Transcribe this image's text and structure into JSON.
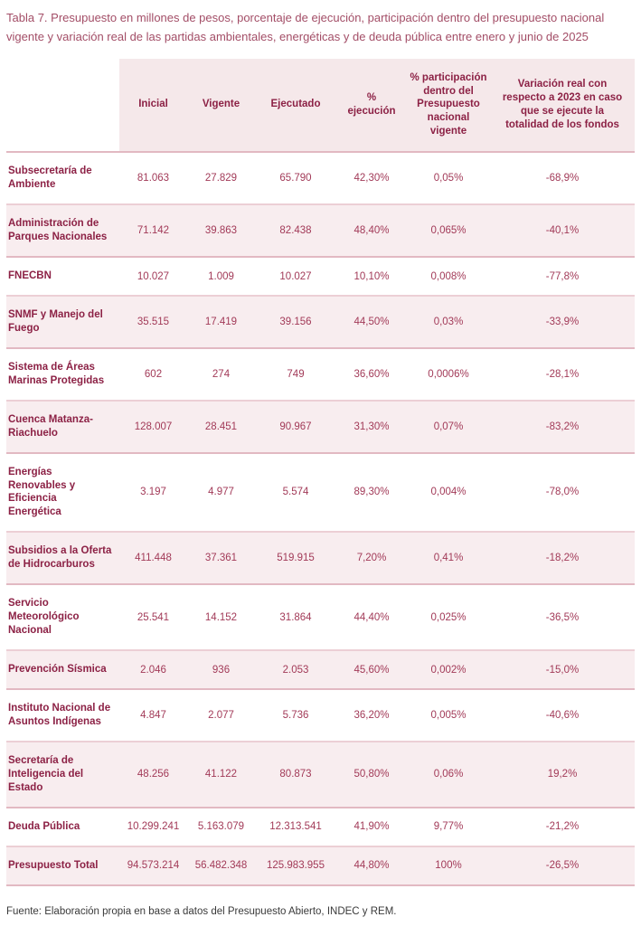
{
  "title": "Tabla 7. Presupuesto en millones de pesos, porcentaje de ejecución, participación dentro del presupuesto nacional vigente y variación real de las partidas ambientales, energéticas y de deuda pública entre enero y junio de 2025",
  "source_note": "Fuente: Elaboración propia en base a datos del Presupuesto Abierto, INDEC y REM.",
  "colors": {
    "title_text": "#a34e67",
    "label_text": "#8c2145",
    "value_text": "#a23a58",
    "header_bg": "#f5e8ea",
    "row_alt_bg": "#f8edef",
    "divider": "#eccfd5",
    "divider_strong": "#e2b9c2",
    "source_text": "#3a3a3a"
  },
  "chart_data": {
    "type": "table",
    "columns": [
      "",
      "Inicial",
      "Vigente",
      "Ejecutado",
      "% ejecución",
      "% participación dentro del Presupuesto nacional vigente",
      "Variación real con respecto a 2023 en caso que se ejecute la totalidad de los fondos"
    ],
    "rows": [
      {
        "label": "Subsecretaría de Ambiente",
        "inicial": "81.063",
        "vigente": "27.829",
        "ejecutado": "65.790",
        "ejecucion": "42,30%",
        "participacion": "0,05%",
        "variacion": "-68,9%"
      },
      {
        "label": "Administración de Parques Nacionales",
        "inicial": "71.142",
        "vigente": "39.863",
        "ejecutado": "82.438",
        "ejecucion": "48,40%",
        "participacion": "0,065%",
        "variacion": "-40,1%"
      },
      {
        "label": "FNECBN",
        "inicial": "10.027",
        "vigente": "1.009",
        "ejecutado": "10.027",
        "ejecucion": "10,10%",
        "participacion": "0,008%",
        "variacion": "-77,8%"
      },
      {
        "label": "SNMF y Manejo del Fuego",
        "inicial": "35.515",
        "vigente": "17.419",
        "ejecutado": "39.156",
        "ejecucion": "44,50%",
        "participacion": "0,03%",
        "variacion": "-33,9%"
      },
      {
        "label": "Sistema de Áreas Marinas Protegidas",
        "inicial": "602",
        "vigente": "274",
        "ejecutado": "749",
        "ejecucion": "36,60%",
        "participacion": "0,0006%",
        "variacion": "-28,1%"
      },
      {
        "label": "Cuenca Matanza-Riachuelo",
        "inicial": "128.007",
        "vigente": "28.451",
        "ejecutado": "90.967",
        "ejecucion": "31,30%",
        "participacion": "0,07%",
        "variacion": "-83,2%"
      },
      {
        "label": "Energías Renovables y Eficiencia Energética",
        "inicial": "3.197",
        "vigente": "4.977",
        "ejecutado": "5.574",
        "ejecucion": "89,30%",
        "participacion": "0,004%",
        "variacion": "-78,0%"
      },
      {
        "label": "Subsidios a la Oferta de Hidrocarburos",
        "inicial": "411.448",
        "vigente": "37.361",
        "ejecutado": "519.915",
        "ejecucion": "7,20%",
        "participacion": "0,41%",
        "variacion": "-18,2%"
      },
      {
        "label": "Servicio Meteorológico Nacional",
        "inicial": "25.541",
        "vigente": "14.152",
        "ejecutado": "31.864",
        "ejecucion": "44,40%",
        "participacion": "0,025%",
        "variacion": "-36,5%"
      },
      {
        "label": "Prevención Sísmica",
        "inicial": "2.046",
        "vigente": "936",
        "ejecutado": "2.053",
        "ejecucion": "45,60%",
        "participacion": "0,002%",
        "variacion": "-15,0%"
      },
      {
        "label": "Instituto Nacional de Asuntos Indígenas",
        "inicial": "4.847",
        "vigente": "2.077",
        "ejecutado": "5.736",
        "ejecucion": "36,20%",
        "participacion": "0,005%",
        "variacion": "-40,6%"
      },
      {
        "label": "Secretaría de Inteligencia del Estado",
        "inicial": "48.256",
        "vigente": "41.122",
        "ejecutado": "80.873",
        "ejecucion": "50,80%",
        "participacion": "0,06%",
        "variacion": "19,2%"
      },
      {
        "label": "Deuda Pública",
        "inicial": "10.299.241",
        "vigente": "5.163.079",
        "ejecutado": "12.313.541",
        "ejecucion": "41,90%",
        "participacion": "9,77%",
        "variacion": "-21,2%"
      },
      {
        "label": "Presupuesto Total",
        "inicial": "94.573.214",
        "vigente": "56.482.348",
        "ejecutado": "125.983.955",
        "ejecucion": "44,80%",
        "participacion": "100%",
        "variacion": "-26,5%"
      }
    ]
  }
}
